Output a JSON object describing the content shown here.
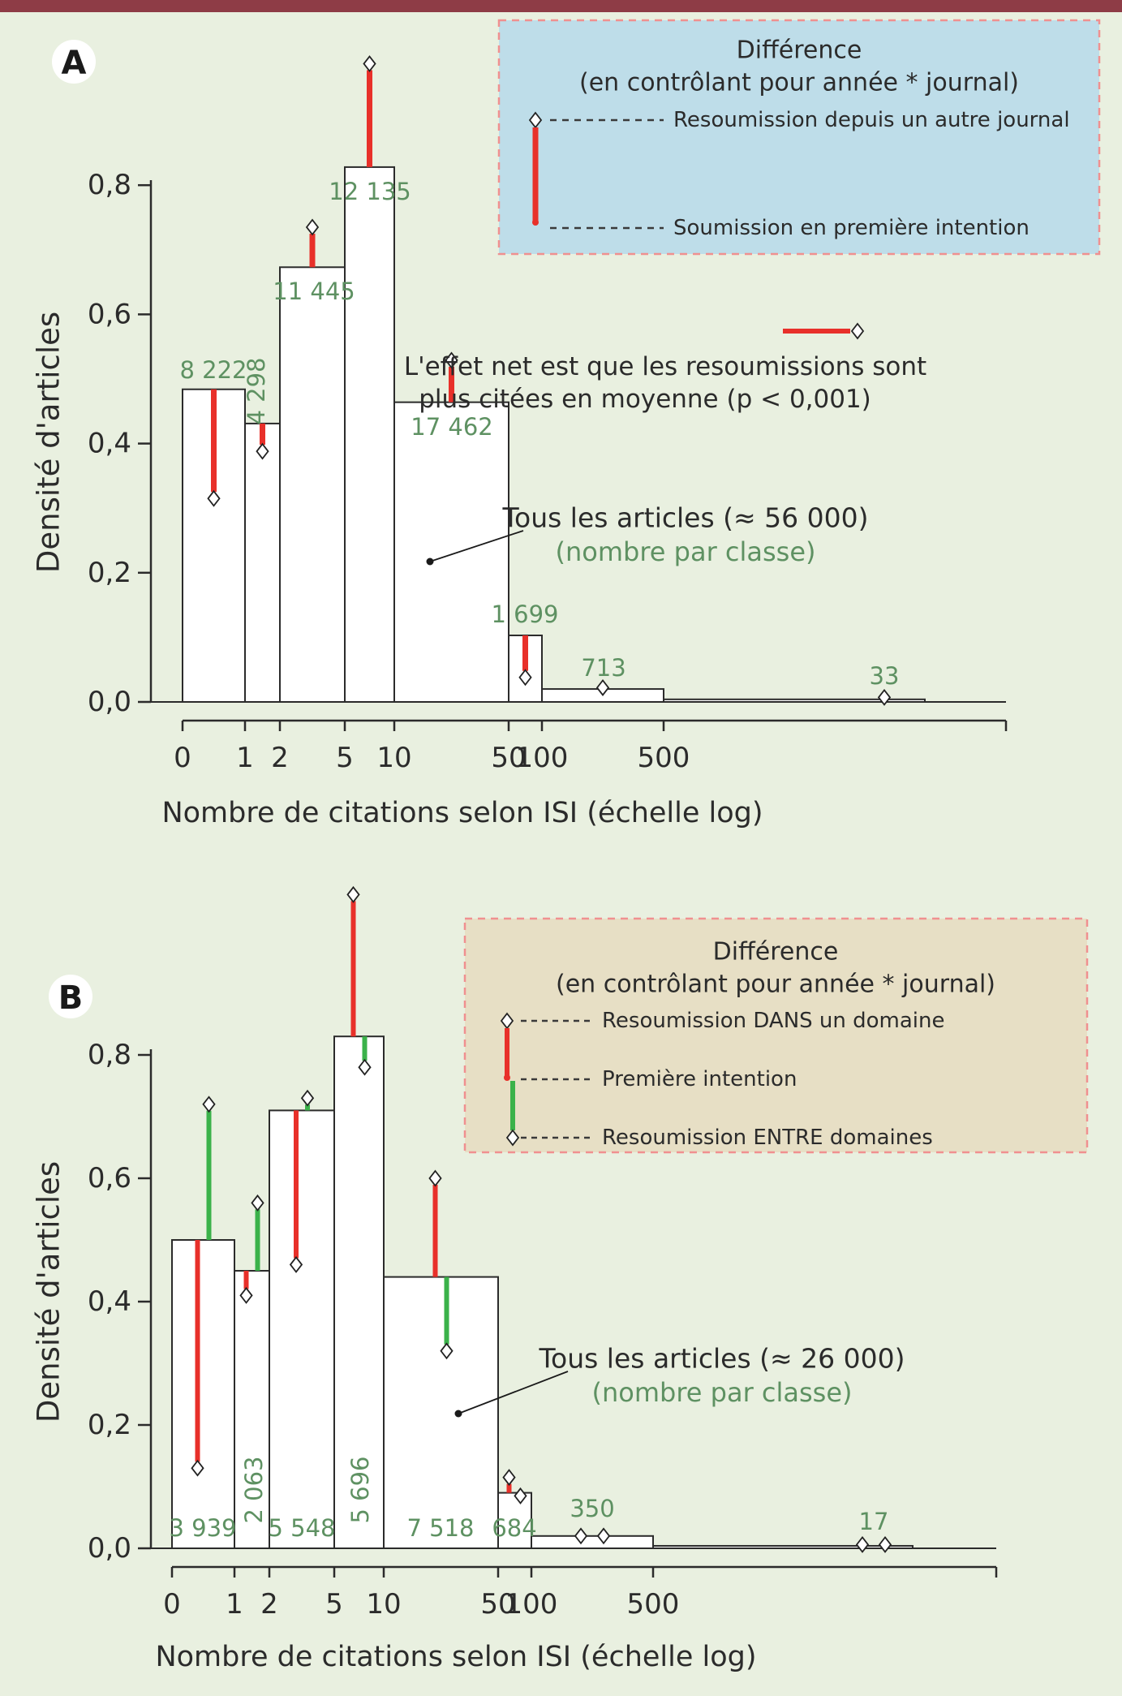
{
  "figure": {
    "top_bar_color": "#8e3c46",
    "background_color": "#e9f0e0"
  },
  "colors": {
    "red": "#e8302a",
    "green": "#3bb24a",
    "green_text": "#5e9162",
    "text": "#2b2b2b",
    "bar_fill": "#ffffff",
    "bar_stroke": "#2b2b2b",
    "legend_a_bg": "#bedde9",
    "legend_b_bg": "#e7dfc5",
    "legend_border": "#f09090"
  },
  "axes": {
    "x_title": "Nombre de citations selon ISI (échelle log)",
    "y_title": "Densité d'articles",
    "x_tick_labels": [
      "0",
      "1",
      "2",
      "5",
      "10",
      "50",
      "100",
      "500"
    ],
    "y_tick_labels": [
      "0,0",
      "0,2",
      "0,4",
      "0,6",
      "0,8"
    ]
  },
  "chart_data": [
    {
      "type": "bar",
      "panel": "A",
      "badge": "A",
      "title": "",
      "xlabel": "Nombre de citations selon ISI (échelle log)",
      "ylabel": "Densité d'articles",
      "ylim": [
        0,
        1.0
      ],
      "x_bins": [
        "0-1",
        "1-2",
        "2-5",
        "5-10",
        "10-50",
        "50-100",
        "100-500",
        ">500"
      ],
      "counts": [
        "8 222",
        "4 298",
        "11 445",
        "12 135",
        "17 462",
        "1 699",
        "713",
        "33"
      ],
      "densities": [
        0.484,
        0.431,
        0.673,
        0.828,
        0.464,
        0.103,
        0.02,
        0.004
      ],
      "resubmission_values": [
        0.315,
        0.388,
        0.735,
        0.988,
        0.529,
        0.038,
        0.022,
        0.007
      ],
      "marker_only": [
        false,
        false,
        false,
        false,
        false,
        false,
        true,
        true
      ],
      "legend": {
        "title_line1": "Différence",
        "title_line2": "(en contrôlant pour année * journal)",
        "item_top": "Resoumission depuis un autre journal",
        "item_bottom": "Soumission en première intention"
      },
      "annotation": {
        "line1": "L'effet net est que les resoumissions sont",
        "line2": "plus citées en moyenne (p < 0,001)"
      },
      "callout": {
        "line1": "Tous les articles (≈ 56 000)",
        "line2": "(nombre par classe)"
      }
    },
    {
      "type": "bar",
      "panel": "B",
      "badge": "B",
      "title": "",
      "xlabel": "Nombre de citations selon ISI (échelle log)",
      "ylabel": "Densité d'articles",
      "ylim": [
        0,
        1.1
      ],
      "x_bins": [
        "0-1",
        "1-2",
        "2-5",
        "5-10",
        "10-50",
        "50-100",
        "100-500",
        ">500"
      ],
      "counts": [
        "3 939",
        "2 063",
        "5 548",
        "5 696",
        "7 518",
        "684",
        "350",
        "17"
      ],
      "densities": [
        0.5,
        0.45,
        0.71,
        0.83,
        0.44,
        0.09,
        0.02,
        0.004
      ],
      "resub_dans_values": [
        0.13,
        0.41,
        0.46,
        1.06,
        0.6,
        0.115,
        0.02,
        0.006
      ],
      "resub_entre_values": [
        0.72,
        0.56,
        0.73,
        0.78,
        0.32,
        0.085,
        0.02,
        0.006
      ],
      "marker_only": [
        false,
        false,
        false,
        false,
        false,
        false,
        true,
        true
      ],
      "legend": {
        "title_line1": "Différence",
        "title_line2": "(en contrôlant pour année * journal)",
        "item_top": "Resoumission DANS un domaine",
        "item_mid": "Première intention",
        "item_bottom": "Resoumission ENTRE domaines"
      },
      "callout": {
        "line1": "Tous les articles (≈ 26 000)",
        "line2": "(nombre par classe)"
      }
    }
  ]
}
